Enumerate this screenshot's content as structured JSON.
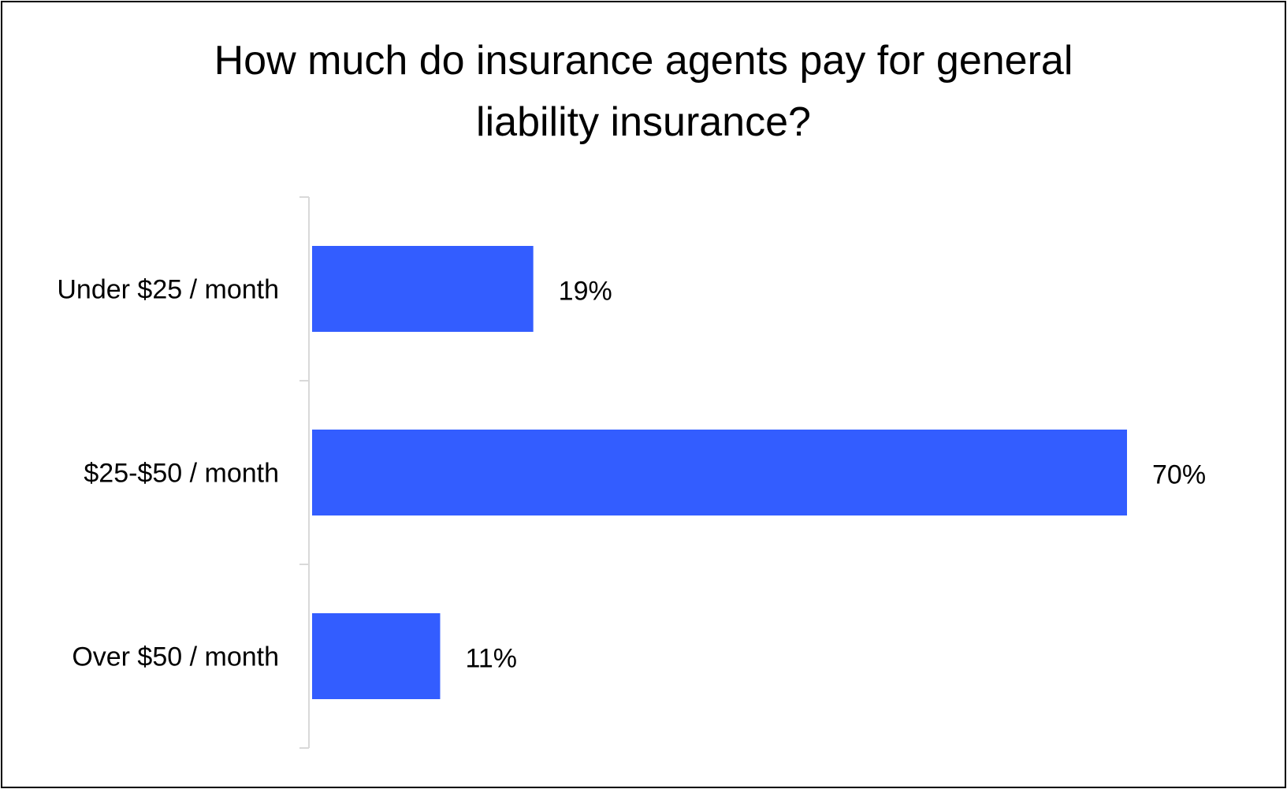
{
  "chart_data": {
    "type": "bar",
    "orientation": "horizontal",
    "title_lines": [
      "How much do insurance agents pay for general",
      "liability insurance?"
    ],
    "categories": [
      "Under $25 / month",
      "$25-$50 / month",
      "Over $50 / month"
    ],
    "values": [
      19,
      70,
      11
    ],
    "value_labels": [
      "19%",
      "70%",
      "11%"
    ],
    "xlim": [
      0,
      70
    ],
    "xlabel": "",
    "ylabel": "",
    "grid": false,
    "legend": "none",
    "bar_color": "#335DFF",
    "axis_color": "#D9D9D9"
  }
}
